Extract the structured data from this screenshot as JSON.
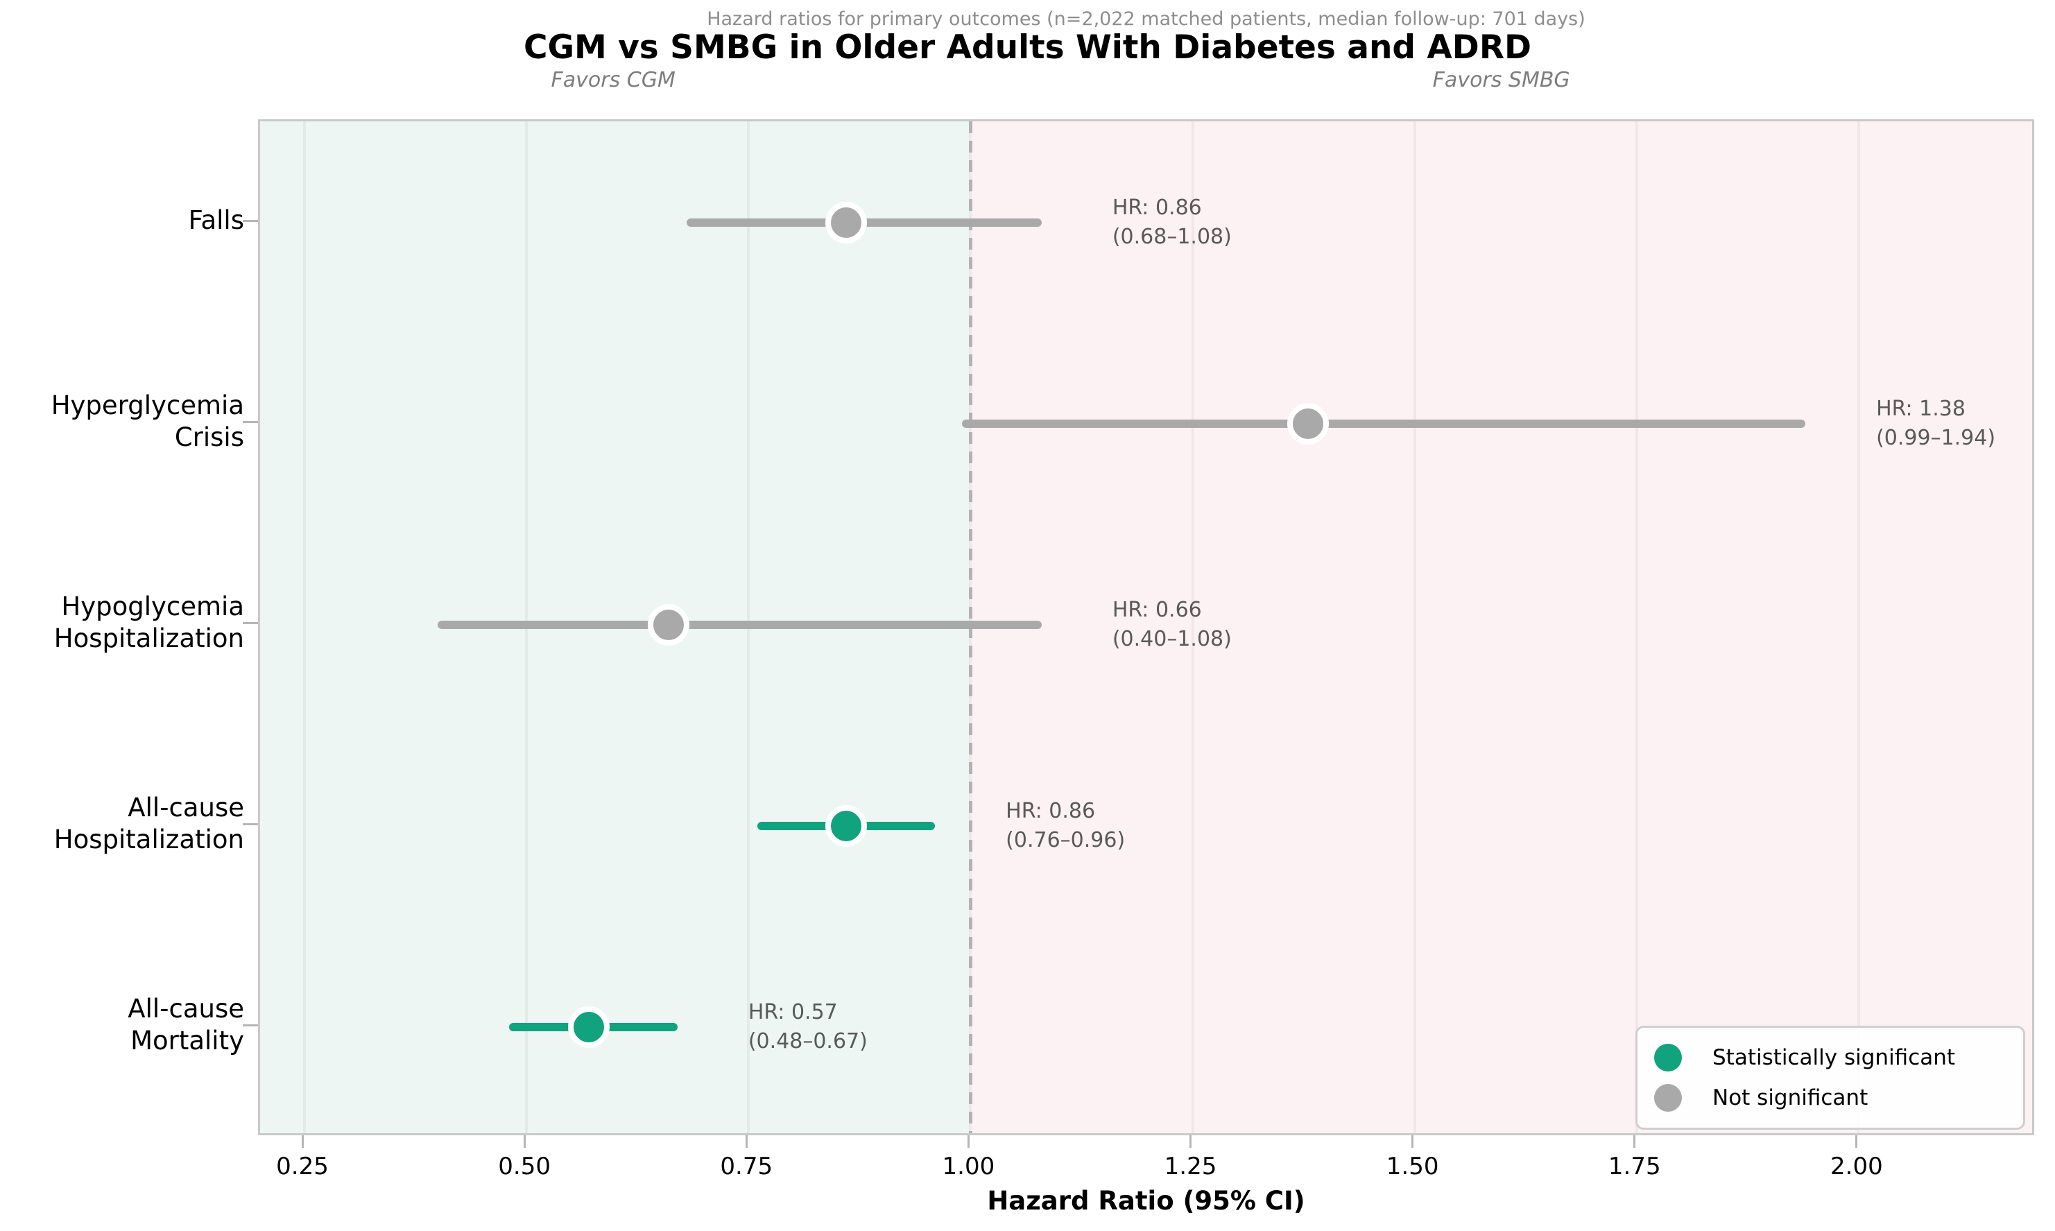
{
  "chart_data": {
    "type": "scatter",
    "style": "forest-plot",
    "title": "CGM vs SMBG in Older Adults With Diabetes and ADRD",
    "subtitle": "Hazard ratios for primary outcomes (n=2,022 matched patients, median follow-up: 701 days)",
    "xlabel": "Hazard Ratio (95% CI)",
    "xlim": [
      0.2,
      2.2
    ],
    "xticks": [
      {
        "v": 0.25,
        "label": "0.25"
      },
      {
        "v": 0.5,
        "label": "0.50"
      },
      {
        "v": 0.75,
        "label": "0.75"
      },
      {
        "v": 1.0,
        "label": "1.00"
      },
      {
        "v": 1.25,
        "label": "1.25"
      },
      {
        "v": 1.5,
        "label": "1.50"
      },
      {
        "v": 1.75,
        "label": "1.75"
      },
      {
        "v": 2.0,
        "label": "2.00"
      }
    ],
    "grid": true,
    "reference_line": 1.0,
    "favors": [
      {
        "label": "Favors CGM",
        "x": 0.6
      },
      {
        "label": "Favors SMBG",
        "x": 1.6
      }
    ],
    "outcomes": [
      {
        "label_lines": [
          "Falls"
        ],
        "hr": 0.86,
        "ci_low": 0.68,
        "ci_high": 1.08,
        "annotation_lines": [
          "HR: 0.86",
          "(0.68–1.08)"
        ],
        "significant": false
      },
      {
        "label_lines": [
          "Hyperglycemia",
          "Crisis"
        ],
        "hr": 1.38,
        "ci_low": 0.99,
        "ci_high": 1.94,
        "annotation_lines": [
          "HR: 1.38",
          "(0.99–1.94)"
        ],
        "significant": false
      },
      {
        "label_lines": [
          "Hypoglycemia",
          "Hospitalization"
        ],
        "hr": 0.66,
        "ci_low": 0.4,
        "ci_high": 1.08,
        "annotation_lines": [
          "HR: 0.66",
          "(0.40–1.08)"
        ],
        "significant": false
      },
      {
        "label_lines": [
          "All-cause",
          "Hospitalization"
        ],
        "hr": 0.86,
        "ci_low": 0.76,
        "ci_high": 0.96,
        "annotation_lines": [
          "HR: 0.86",
          "(0.76–0.96)"
        ],
        "significant": true
      },
      {
        "label_lines": [
          "All-cause",
          "Mortality"
        ],
        "hr": 0.57,
        "ci_low": 0.48,
        "ci_high": 0.67,
        "annotation_lines": [
          "HR: 0.57",
          "(0.48–0.67)"
        ],
        "significant": true
      }
    ],
    "legend": {
      "position": "lower right",
      "items": [
        {
          "label": "Statistically significant",
          "color": "#10a37e"
        },
        {
          "label": "Not significant",
          "color": "#a9a9a9"
        }
      ]
    },
    "colors": {
      "significant": "#10a37e",
      "not_significant": "#a9a9a9",
      "favors_cgm_bg": "#edf6f2",
      "favors_smbg_bg": "#fdf2f3",
      "reference_line": "#b3b3b3",
      "annotation_text": "#595959"
    }
  }
}
